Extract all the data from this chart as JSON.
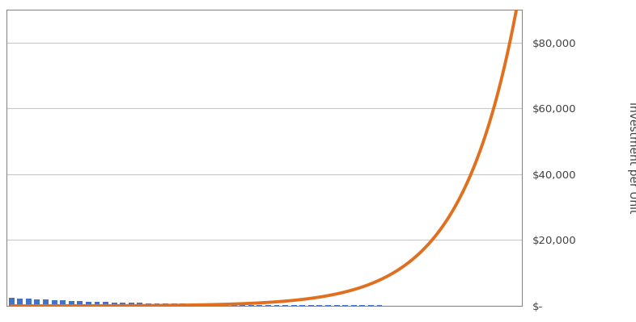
{
  "ylabel": "Investment per Unit",
  "ylabel_fontsize": 10,
  "bar_color": "#4472C4",
  "line_color": "#E07020",
  "line_width": 2.8,
  "background_color": "#FFFFFF",
  "plot_bg_color": "#FFFFFF",
  "grid_color": "#C8C8C8",
  "ylim": [
    0,
    90000
  ],
  "yticks": [
    0,
    20000,
    40000,
    60000,
    80000
  ],
  "n_bars": 60,
  "curve_exponent": 9.0,
  "curve_max": 90000,
  "fig_width": 7.86,
  "fig_height": 3.99,
  "dpi": 100,
  "border_color": "#404040"
}
